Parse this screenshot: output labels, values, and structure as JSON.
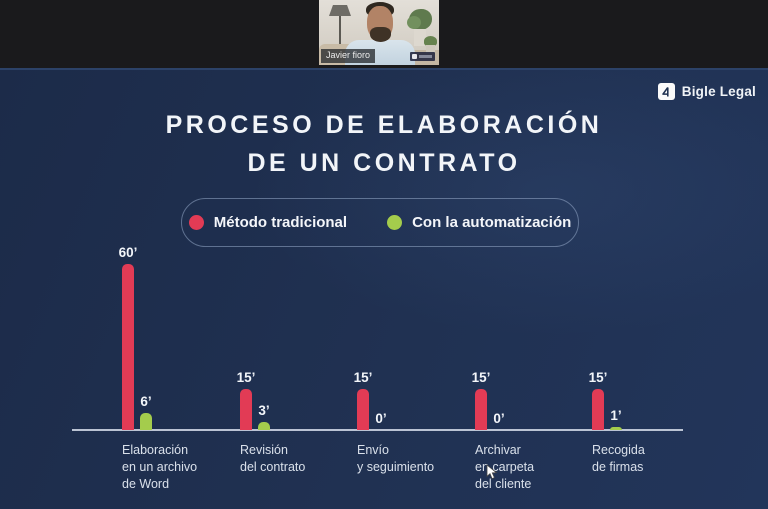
{
  "participant": {
    "name": "Javier fioro"
  },
  "brand": {
    "name": "Bigle Legal"
  },
  "slide": {
    "title_line1": "PROCESO DE ELABORACIÓN",
    "title_line2": "DE UN CONTRATO",
    "background": "#203152"
  },
  "legend": {
    "items": [
      {
        "label": "Método tradicional",
        "color": "#e23b55"
      },
      {
        "label": "Con la automatización",
        "color": "#a4cc4c"
      }
    ]
  },
  "chart_data": {
    "type": "bar",
    "title": "Proceso de elaboración de un contrato",
    "value_suffix": "’",
    "ylim": [
      0,
      60
    ],
    "grid": false,
    "legend_position": "top",
    "categories": [
      [
        "Elaboración",
        "en un archivo",
        "de Word"
      ],
      [
        "Revisión",
        "del contrato"
      ],
      [
        "Envío",
        "y seguimiento"
      ],
      [
        "Archivar",
        "en carpeta",
        "del cliente"
      ],
      [
        "Recogida",
        "de firmas"
      ]
    ],
    "series": [
      {
        "name": "Método tradicional",
        "color": "#e23b55",
        "values": [
          60,
          15,
          15,
          15,
          15
        ]
      },
      {
        "name": "Con la automatización",
        "color": "#a4cc4c",
        "values": [
          6,
          3,
          0,
          0,
          1
        ]
      }
    ]
  }
}
